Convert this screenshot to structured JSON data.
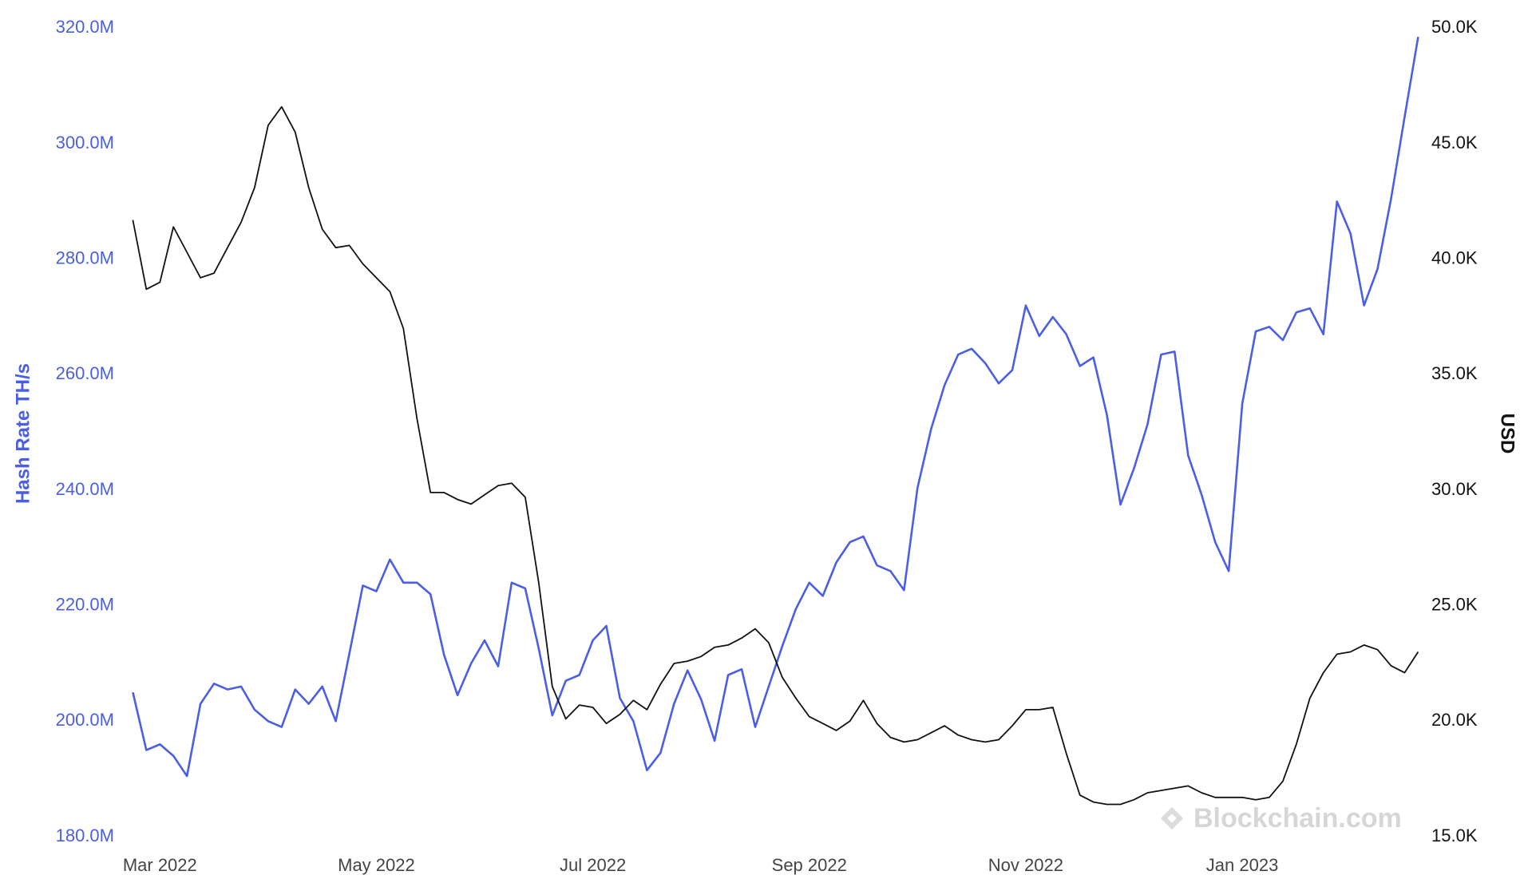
{
  "chart_data": {
    "type": "line",
    "y_label": "Hash Rate TH/s",
    "y2_label": "USD",
    "watermark": "Blockchain.com",
    "categories": [
      null,
      null,
      "Mar 2022",
      null,
      null,
      null,
      null,
      null,
      null,
      null,
      null,
      null,
      null,
      null,
      null,
      null,
      null,
      null,
      "May 2022",
      null,
      null,
      null,
      null,
      null,
      null,
      null,
      null,
      null,
      null,
      null,
      null,
      null,
      null,
      null,
      "Jul 2022",
      null,
      null,
      null,
      null,
      null,
      null,
      null,
      null,
      null,
      null,
      null,
      null,
      null,
      null,
      null,
      "Sep 2022",
      null,
      null,
      null,
      null,
      null,
      null,
      null,
      null,
      null,
      null,
      null,
      null,
      null,
      null,
      null,
      "Nov 2022",
      null,
      null,
      null,
      null,
      null,
      null,
      null,
      null,
      null,
      null,
      null,
      null,
      null,
      null,
      null,
      "Jan 2023",
      null,
      null,
      null,
      null,
      null,
      null,
      null,
      null,
      null,
      null,
      null,
      null,
      null
    ],
    "ylim": [
      180000000.0,
      320000000.0
    ],
    "yticks": [
      {
        "value": 180000000.0,
        "label": "180.0M"
      },
      {
        "value": 200000000.0,
        "label": "200.0M"
      },
      {
        "value": 220000000.0,
        "label": "220.0M"
      },
      {
        "value": 240000000.0,
        "label": "240.0M"
      },
      {
        "value": 260000000.0,
        "label": "260.0M"
      },
      {
        "value": 280000000.0,
        "label": "280.0M"
      },
      {
        "value": 300000000.0,
        "label": "300.0M"
      },
      {
        "value": 320000000.0,
        "label": "320.0M"
      }
    ],
    "y2lim": [
      15000.0,
      50000.0
    ],
    "y2ticks": [
      {
        "value": 15000.0,
        "label": "15.0K"
      },
      {
        "value": 20000.0,
        "label": "20.0K"
      },
      {
        "value": 25000.0,
        "label": "25.0K"
      },
      {
        "value": 30000.0,
        "label": "30.0K"
      },
      {
        "value": 35000.0,
        "label": "35.0K"
      },
      {
        "value": 40000.0,
        "label": "40.0K"
      },
      {
        "value": 45000.0,
        "label": "45.0K"
      },
      {
        "value": 50000.0,
        "label": "50.0K"
      }
    ],
    "series": [
      {
        "color": "#4a5fe3",
        "values": [
          205000000.0,
          195000000.0,
          196000000.0,
          194000000.0,
          190500000.0,
          203000000.0,
          206500000.0,
          205500000.0,
          206000000.0,
          202000000.0,
          200000000.0,
          199000000.0,
          205500000.0,
          203000000.0,
          206000000.0,
          200000000.0,
          211700000.0,
          223500000.0,
          222500000.0,
          228000000.0,
          224000000.0,
          224000000.0,
          222000000.0,
          211500000.0,
          204500000.0,
          210000000.0,
          214000000.0,
          209500000.0,
          224000000.0,
          223000000.0,
          212600000.0,
          201000000.0,
          207000000.0,
          208000000.0,
          214000000.0,
          216500000.0,
          204000000.0,
          200000000.0,
          191500000.0,
          194500000.0,
          203000000.0,
          208800000.0,
          203800000.0,
          196600000.0,
          208000000.0,
          209000000.0,
          199000000.0,
          206000000.0,
          213000000.0,
          219400000.0,
          224000000.0,
          221700000.0,
          227500000.0,
          231000000.0,
          232000000.0,
          227000000.0,
          226000000.0,
          222700000.0,
          240400000.0,
          250600000.0,
          258200000.0,
          263500000.0,
          264500000.0,
          262000000.0,
          258500000.0,
          260800000.0,
          272000000.0,
          266700000.0,
          270000000.0,
          267000000.0,
          261500000.0,
          263000000.0,
          253000000.0,
          237500000.0,
          243800000.0,
          251400000.0,
          263500000.0,
          264000000.0,
          246000000.0,
          239200000.0,
          231000000.0,
          226000000.0,
          255000000.0,
          267500000.0,
          268300000.0,
          266000000.0,
          270800000.0,
          271500000.0,
          267000000.0,
          290000000.0,
          284500000.0,
          272000000.0,
          278300000.0,
          290500000.0,
          304600000.0,
          318500000.0
        ]
      },
      {
        "color": "#111111",
        "axis": "y2",
        "values": [
          41700.0,
          38700.0,
          39000.0,
          41400.0,
          40300.0,
          39200.0,
          39400.0,
          40500.0,
          41600.0,
          43100.0,
          45800.0,
          46600.0,
          45500.0,
          43100.0,
          41300.0,
          40500.0,
          40600.0,
          39800.0,
          39200.0,
          38600.0,
          37000.0,
          33100.0,
          29900.0,
          29900.0,
          29600.0,
          29400.0,
          29800.0,
          30200.0,
          30300.0,
          29700.0,
          26000.0,
          21500.0,
          20100.0,
          20700.0,
          20600.0,
          19900.0,
          20300.0,
          20900.0,
          20500.0,
          21600.0,
          22500.0,
          22600.0,
          22800.0,
          23200.0,
          23300.0,
          23600.0,
          24000.0,
          23400.0,
          21900.0,
          21000.0,
          20200.0,
          19900.0,
          19600.0,
          20000.0,
          20900.0,
          19900.0,
          19300.0,
          19100.0,
          19200.0,
          19500.0,
          19800.0,
          19400.0,
          19200.0,
          19100.0,
          19200.0,
          19800.0,
          20500.0,
          20500.0,
          20600.0,
          18600.0,
          16800.0,
          16500.0,
          16400.0,
          16400.0,
          16600.0,
          16900.0,
          17000.0,
          17100.0,
          17200.0,
          16900.0,
          16700.0,
          16700.0,
          16700.0,
          16600.0,
          16700.0,
          17400.0,
          19000.0,
          21000.0,
          22100.0,
          22900.0,
          23000.0,
          23300.0,
          23100.0,
          22400.0,
          22100.0,
          23000.0
        ]
      }
    ]
  }
}
